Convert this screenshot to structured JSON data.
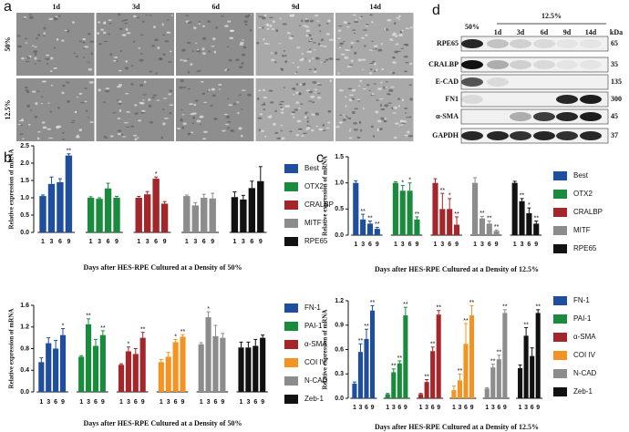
{
  "panel_labels": [
    "a",
    "b",
    "c",
    "d"
  ],
  "micrographs": {
    "columns": [
      "1d",
      "3d",
      "6d",
      "9d",
      "14d"
    ],
    "rows": [
      "50%",
      "12.5%"
    ]
  },
  "western_blot": {
    "group_labels": [
      "50%",
      "12.5%"
    ],
    "lanes": [
      "1d",
      "3d",
      "6d",
      "9d",
      "14d"
    ],
    "unit": "kDa",
    "proteins": [
      {
        "name": "RPE65",
        "kda": 65
      },
      {
        "name": "CRALBP",
        "kda": 35
      },
      {
        "name": "E-CAD",
        "kda": 135
      },
      {
        "name": "FN1",
        "kda": 300
      },
      {
        "name": "α-SMA",
        "kda": 45
      },
      {
        "name": "GAPDH",
        "kda": 37
      }
    ]
  },
  "chart_data": [
    {
      "type": "bar",
      "y_label": "Relative expression of mRNA",
      "x_label": "Days after HES-RPE Cultured at a Density of 50%",
      "categories": [
        "1",
        "3",
        "6",
        "9"
      ],
      "ylim": [
        0,
        2.5
      ],
      "yticks": [
        {
          "value": 0,
          "label": "0.0"
        },
        0.5,
        {
          "value": 1,
          "label": "1.0"
        },
        1.5,
        {
          "value": 2,
          "label": "2.0"
        },
        2.5
      ],
      "series": [
        {
          "name": "Best",
          "color": "#1f4e9c",
          "values": [
            1.05,
            1.4,
            1.45,
            2.22
          ],
          "errors": [
            0.03,
            0.2,
            0.1,
            0.05
          ],
          "significance": [
            null,
            null,
            null,
            "**"
          ]
        },
        {
          "name": "OTX2",
          "color": "#1a8a3c",
          "values": [
            1.0,
            0.97,
            1.27,
            1.0
          ],
          "errors": [
            0.03,
            0.03,
            0.15,
            0.04
          ]
        },
        {
          "name": "CRALBP",
          "color": "#a3262a",
          "values": [
            1.0,
            1.1,
            1.55,
            0.83
          ],
          "errors": [
            0.04,
            0.08,
            0.05,
            0.06
          ],
          "significance": [
            null,
            null,
            "*",
            null
          ]
        },
        {
          "name": "MITF",
          "color": "#8c8c8c",
          "values": [
            1.05,
            0.78,
            1.0,
            0.98
          ],
          "errors": [
            0.03,
            0.08,
            0.1,
            0.15
          ]
        },
        {
          "name": "RPE65",
          "color": "#111111",
          "values": [
            1.02,
            0.95,
            1.28,
            1.48
          ],
          "errors": [
            0.15,
            0.12,
            0.2,
            0.42
          ]
        }
      ]
    },
    {
      "type": "bar",
      "y_label": "Relative expression of mRNA",
      "x_label": "Days after HES-RPE Cultured at a Density of 50%",
      "categories": [
        "1",
        "3",
        "6",
        "9"
      ],
      "ylim": [
        0,
        1.6
      ],
      "yticks": [
        {
          "value": 0,
          "label": "0.0"
        },
        0.4,
        0.8,
        1.2,
        1.6
      ],
      "series": [
        {
          "name": "FN-1",
          "color": "#1f4e9c",
          "values": [
            0.55,
            0.9,
            0.8,
            1.05
          ],
          "errors": [
            0.08,
            0.1,
            0.15,
            0.12
          ],
          "significance": [
            null,
            null,
            null,
            "*"
          ]
        },
        {
          "name": "PAI-1",
          "color": "#1a8a3c",
          "values": [
            0.65,
            1.25,
            0.85,
            1.05
          ],
          "errors": [
            0.02,
            0.1,
            0.12,
            0.08
          ],
          "significance": [
            null,
            "**",
            null,
            "**"
          ]
        },
        {
          "name": "α-SMA",
          "color": "#a3262a",
          "values": [
            0.5,
            0.75,
            0.7,
            1.0
          ],
          "errors": [
            0.02,
            0.08,
            0.1,
            0.1
          ],
          "significance": [
            null,
            "*",
            null,
            "**"
          ]
        },
        {
          "name": "COI IV",
          "color": "#f39323",
          "values": [
            0.55,
            0.65,
            0.92,
            1.02
          ],
          "errors": [
            0.05,
            0.08,
            0.05,
            0.04
          ],
          "significance": [
            null,
            null,
            "*",
            "**"
          ]
        },
        {
          "name": "N-CAD",
          "color": "#8c8c8c",
          "values": [
            0.88,
            1.38,
            1.03,
            1.0
          ],
          "errors": [
            0.03,
            0.1,
            0.2,
            0.08
          ],
          "significance": [
            null,
            "*",
            null,
            null
          ]
        },
        {
          "name": "Zeb-1",
          "color": "#111111",
          "values": [
            0.82,
            0.82,
            0.85,
            1.0
          ],
          "errors": [
            0.1,
            0.1,
            0.12,
            0.05
          ]
        }
      ]
    },
    {
      "type": "bar",
      "y_label": "Relative expression of mRNA",
      "x_label": "Days after HES-RPE Cultured at a Density of 12.5%",
      "categories": [
        "1",
        "3",
        "6",
        "9"
      ],
      "ylim": [
        0,
        1.5
      ],
      "yticks": [
        {
          "value": 0,
          "label": "0.0"
        },
        0.5,
        {
          "value": 1,
          "label": "1.0"
        },
        1.5
      ],
      "series": [
        {
          "name": "Best",
          "color": "#1f4e9c",
          "values": [
            1.0,
            0.3,
            0.22,
            0.12
          ],
          "errors": [
            0.04,
            0.1,
            0.05,
            0.03
          ],
          "significance": [
            null,
            "**",
            "**",
            "**"
          ]
        },
        {
          "name": "OTX2",
          "color": "#1a8a3c",
          "values": [
            1.0,
            0.85,
            0.85,
            0.3
          ],
          "errors": [
            0.02,
            0.1,
            0.15,
            0.05
          ],
          "significance": [
            null,
            "*",
            "*",
            "**"
          ]
        },
        {
          "name": "CRALBP",
          "color": "#a3262a",
          "values": [
            1.0,
            0.5,
            0.5,
            0.2
          ],
          "errors": [
            0.08,
            0.3,
            0.2,
            0.15
          ],
          "significance": [
            null,
            "**",
            "*",
            "**"
          ]
        },
        {
          "name": "MITF",
          "color": "#8c8c8c",
          "values": [
            1.0,
            0.32,
            0.22,
            0.08
          ],
          "errors": [
            0.1,
            0.04,
            0.05,
            0.02
          ],
          "significance": [
            null,
            "**",
            "**",
            "**"
          ]
        },
        {
          "name": "RPE65",
          "color": "#111111",
          "values": [
            1.0,
            0.65,
            0.42,
            0.22
          ],
          "errors": [
            0.03,
            0.05,
            0.1,
            0.05
          ],
          "significance": [
            null,
            "**",
            "*",
            "**"
          ]
        }
      ]
    },
    {
      "type": "bar",
      "y_label": "Relative expression of mRNA",
      "x_label": "Days after HES-RPE Cultured at a Density of 12.5%",
      "categories": [
        "1",
        "3",
        "6",
        "9"
      ],
      "ylim": [
        0,
        1.2
      ],
      "yticks": [
        {
          "value": 0,
          "label": "0.0"
        },
        0.3,
        0.6,
        0.9,
        1.2
      ],
      "series": [
        {
          "name": "FN-1",
          "color": "#1f4e9c",
          "values": [
            0.18,
            0.57,
            0.73,
            1.08
          ],
          "errors": [
            0.02,
            0.1,
            0.12,
            0.06
          ],
          "significance": [
            null,
            "**",
            "**",
            "**"
          ]
        },
        {
          "name": "PAI-1",
          "color": "#1a8a3c",
          "values": [
            0.05,
            0.32,
            0.43,
            1.02
          ],
          "errors": [
            0.01,
            0.04,
            0.03,
            0.1
          ],
          "significance": [
            null,
            "**",
            "**",
            "**"
          ]
        },
        {
          "name": "α-SMA",
          "color": "#a3262a",
          "values": [
            0.05,
            0.2,
            0.58,
            1.03
          ],
          "errors": [
            0.01,
            0.03,
            0.05,
            0.05
          ],
          "significance": [
            null,
            "**",
            "**",
            "**"
          ]
        },
        {
          "name": "COI IV",
          "color": "#f39323",
          "values": [
            0.1,
            0.22,
            0.67,
            1.02
          ],
          "errors": [
            0.05,
            0.08,
            0.25,
            0.12
          ],
          "significance": [
            null,
            "**",
            "**",
            "**"
          ]
        },
        {
          "name": "N-CAD",
          "color": "#8c8c8c",
          "values": [
            0.12,
            0.38,
            0.48,
            1.05
          ],
          "errors": [
            0.01,
            0.04,
            0.05,
            0.04
          ],
          "significance": [
            null,
            "**",
            "**",
            "**"
          ]
        },
        {
          "name": "Zeb-1",
          "color": "#111111",
          "values": [
            0.37,
            0.77,
            0.52,
            1.05
          ],
          "errors": [
            0.04,
            0.1,
            0.1,
            0.04
          ],
          "significance": [
            null,
            "**",
            null,
            "**"
          ]
        }
      ]
    }
  ]
}
